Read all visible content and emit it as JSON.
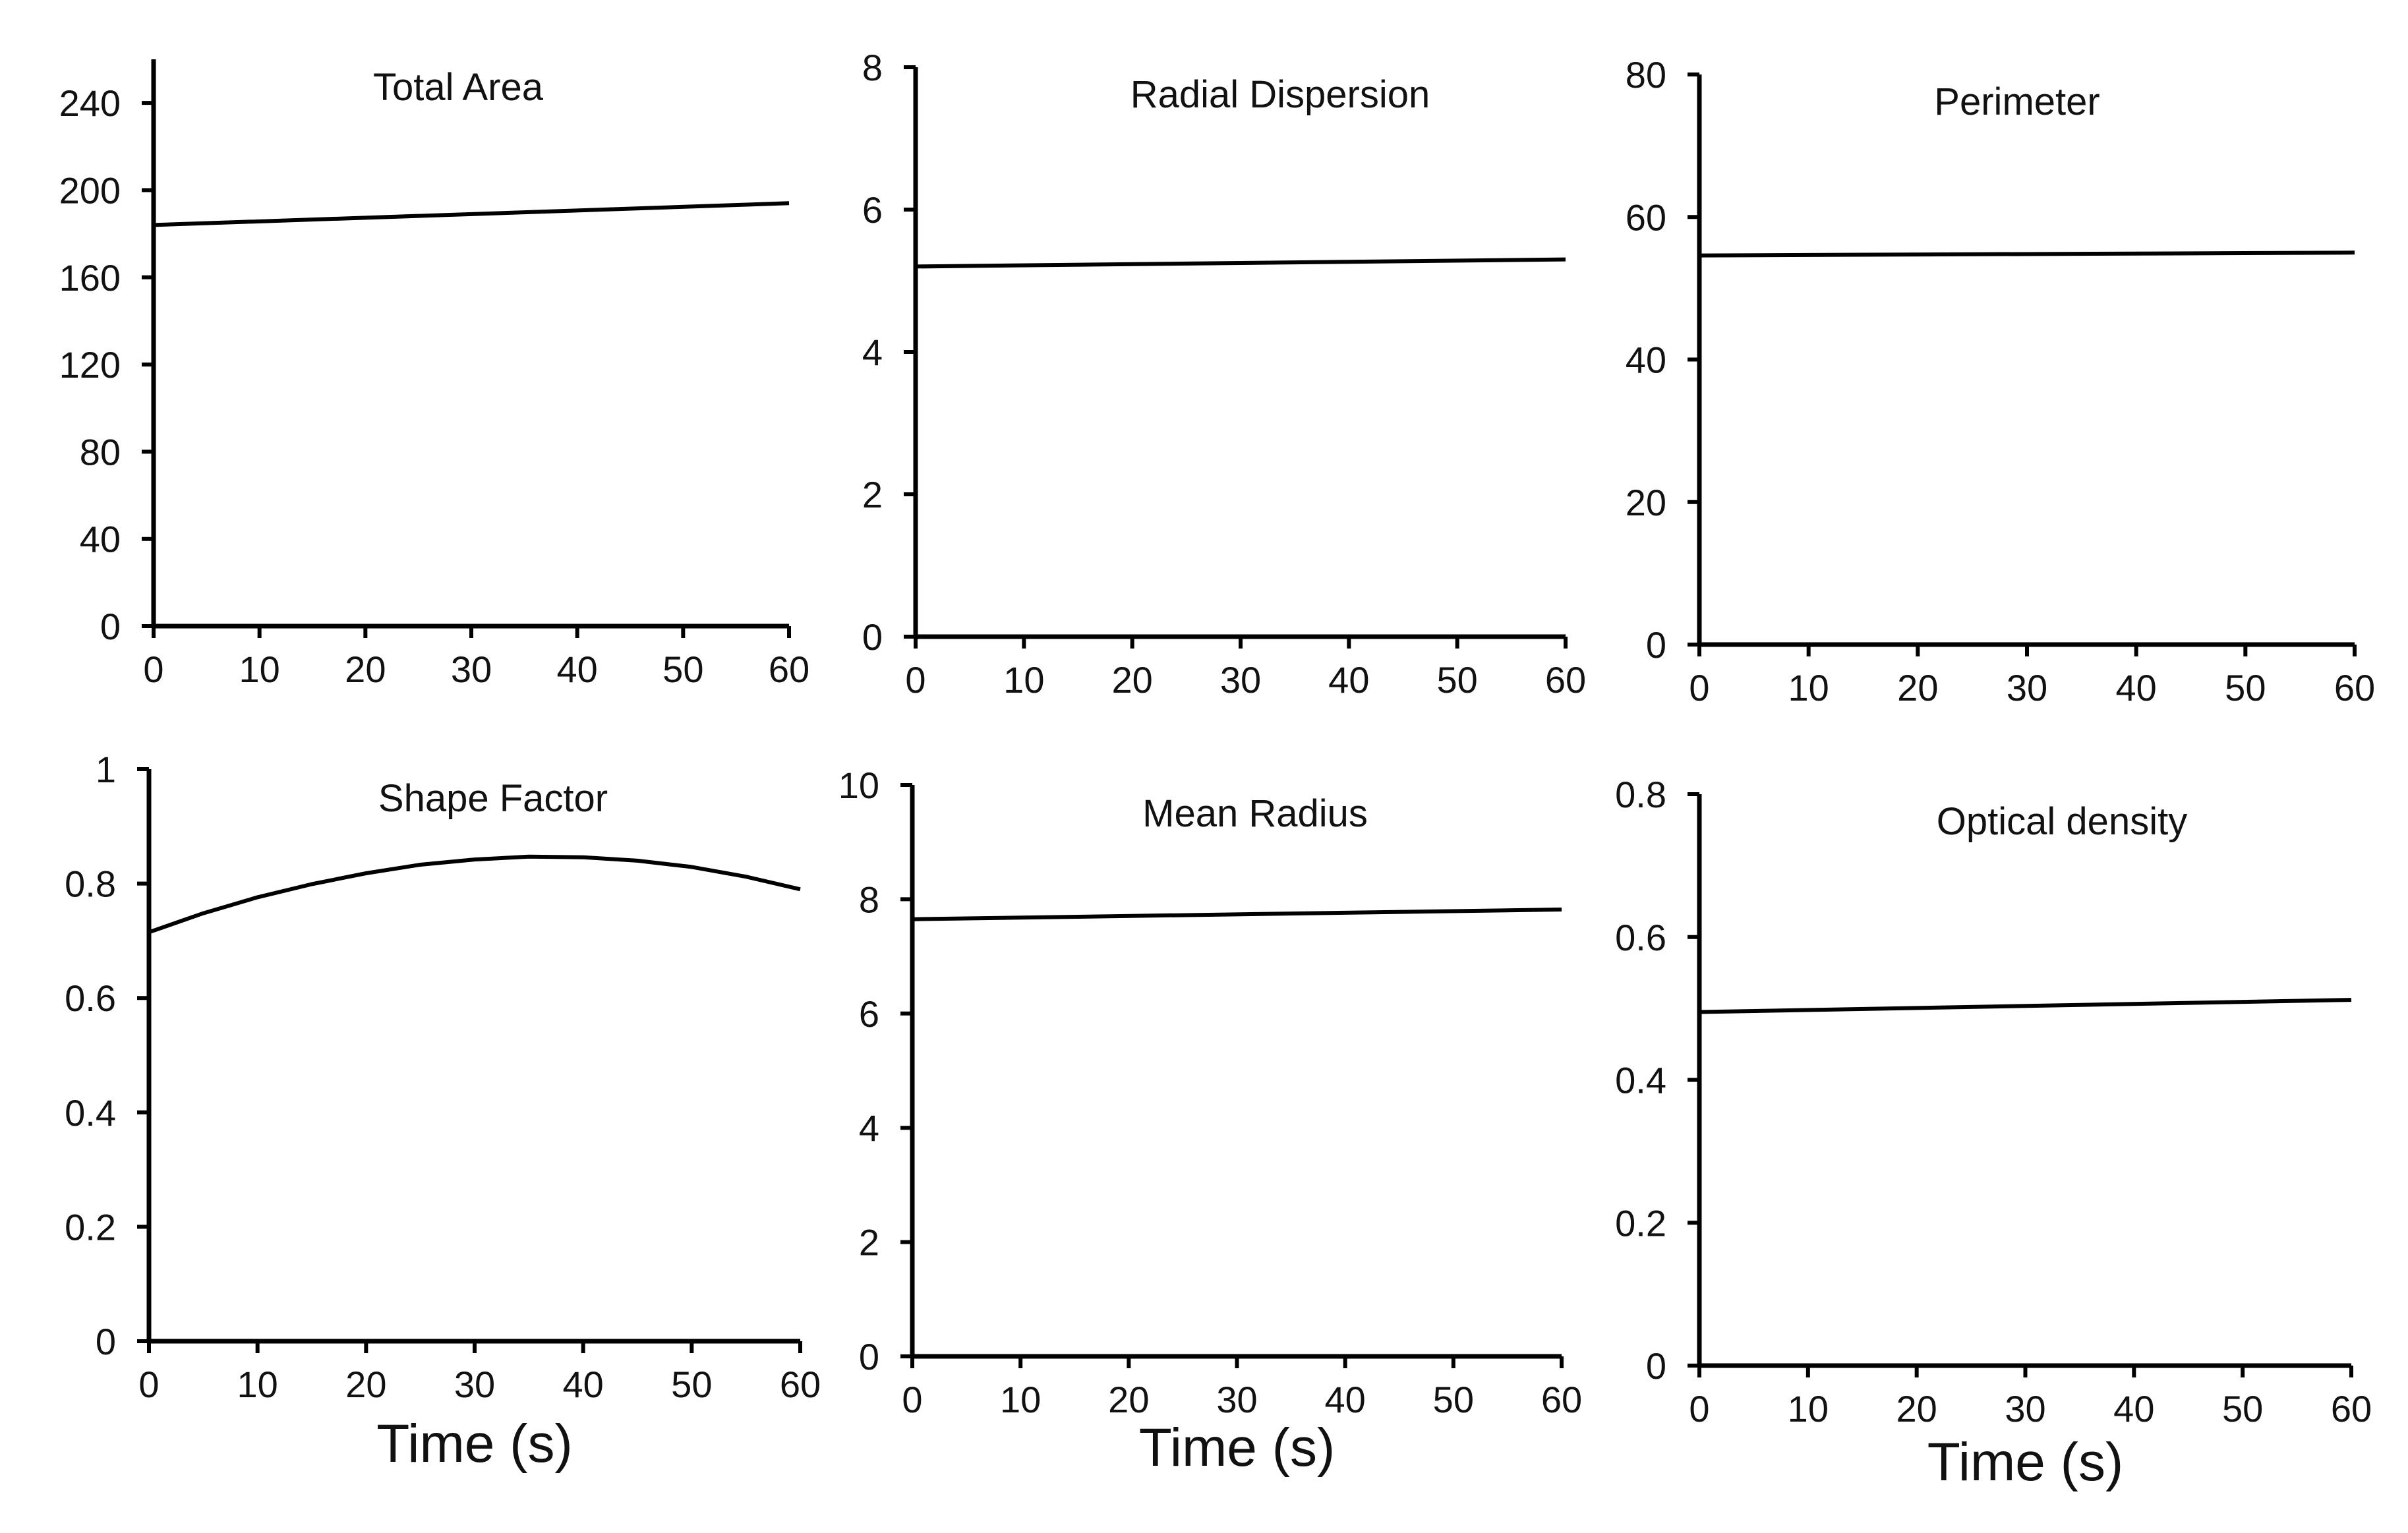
{
  "chart_data": [
    {
      "type": "line",
      "title": "Total Area",
      "xlabel": "",
      "ylabel": "",
      "xlim": [
        0,
        60
      ],
      "ylim": [
        0,
        260
      ],
      "xticks": [
        "0",
        "10",
        "20",
        "30",
        "40",
        "50",
        "60"
      ],
      "yticks": [
        "0",
        "40",
        "80",
        "120",
        "160",
        "200",
        "240"
      ],
      "series": [
        {
          "name": "Total Area",
          "x": [
            0,
            60
          ],
          "y": [
            184,
            194
          ]
        }
      ]
    },
    {
      "type": "line",
      "title": "Radial Dispersion",
      "xlabel": "",
      "ylabel": "",
      "xlim": [
        0,
        60
      ],
      "ylim": [
        0,
        8
      ],
      "xticks": [
        "0",
        "10",
        "20",
        "30",
        "40",
        "50",
        "60"
      ],
      "yticks": [
        "0",
        "2",
        "4",
        "6",
        "8"
      ],
      "series": [
        {
          "name": "Radial Dispersion",
          "x": [
            0,
            60
          ],
          "y": [
            5.2,
            5.3
          ]
        }
      ]
    },
    {
      "type": "line",
      "title": "Perimeter",
      "xlabel": "",
      "ylabel": "",
      "xlim": [
        0,
        60
      ],
      "ylim": [
        0,
        80
      ],
      "xticks": [
        "0",
        "10",
        "20",
        "30",
        "40",
        "50",
        "60"
      ],
      "yticks": [
        "0",
        "20",
        "40",
        "60",
        "80"
      ],
      "series": [
        {
          "name": "Perimeter",
          "x": [
            0,
            60
          ],
          "y": [
            54.6,
            55.0
          ]
        }
      ]
    },
    {
      "type": "line",
      "title": "Shape Factor",
      "xlabel": "Time (s)",
      "ylabel": "",
      "xlim": [
        0,
        60
      ],
      "ylim": [
        0,
        1
      ],
      "xticks": [
        "0",
        "10",
        "20",
        "30",
        "40",
        "50",
        "60"
      ],
      "yticks": [
        "0",
        "0.2",
        "0.4",
        "0.6",
        "0.8",
        "1"
      ],
      "series": [
        {
          "name": "Shape Factor",
          "x": [
            0,
            5,
            10,
            15,
            20,
            25,
            30,
            35,
            40,
            45,
            50,
            55,
            60
          ],
          "y": [
            0.715,
            0.748,
            0.776,
            0.799,
            0.818,
            0.833,
            0.842,
            0.847,
            0.846,
            0.84,
            0.829,
            0.812,
            0.79
          ]
        }
      ]
    },
    {
      "type": "line",
      "title": "Mean Radius",
      "xlabel": "Time (s)",
      "ylabel": "",
      "xlim": [
        0,
        60
      ],
      "ylim": [
        0,
        10
      ],
      "xticks": [
        "0",
        "10",
        "20",
        "30",
        "40",
        "50",
        "60"
      ],
      "yticks": [
        "0",
        "2",
        "4",
        "6",
        "8",
        "10"
      ],
      "series": [
        {
          "name": "Mean Radius",
          "x": [
            0,
            60
          ],
          "y": [
            7.65,
            7.82
          ]
        }
      ]
    },
    {
      "type": "line",
      "title": "Optical density",
      "xlabel": "Time (s)",
      "ylabel": "",
      "xlim": [
        0,
        60
      ],
      "ylim": [
        0,
        0.8
      ],
      "xticks": [
        "0",
        "10",
        "20",
        "30",
        "40",
        "50",
        "60"
      ],
      "yticks": [
        "0",
        "0.2",
        "0.4",
        "0.6",
        "0.8"
      ],
      "series": [
        {
          "name": "Optical density",
          "x": [
            0,
            60
          ],
          "y": [
            0.495,
            0.512
          ]
        }
      ]
    }
  ]
}
